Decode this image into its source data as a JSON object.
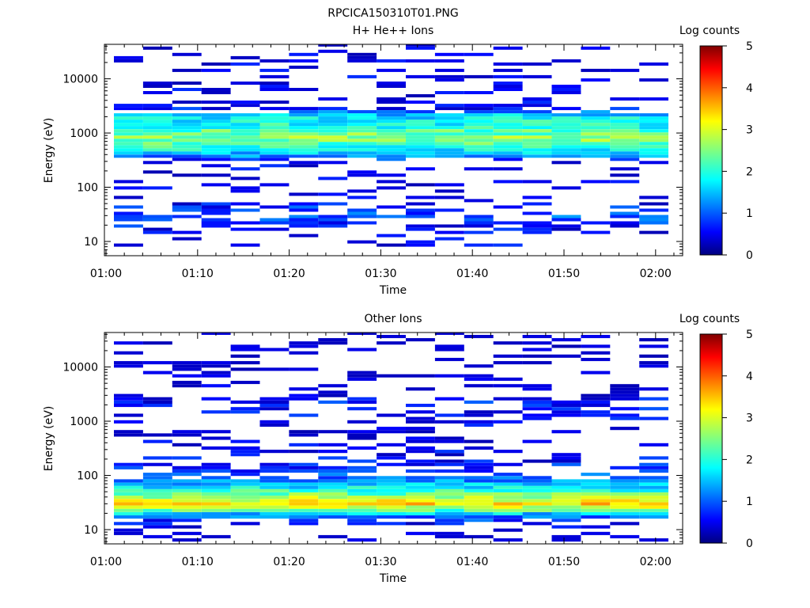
{
  "figure_title": "RPCICA150310T01.PNG",
  "chart_data": [
    {
      "type": "heatmap",
      "title": "H+ He++ Ions",
      "xlabel": "Time",
      "ylabel": "Energy (eV)",
      "x_ticks": [
        "01:00",
        "01:10",
        "01:20",
        "01:30",
        "01:40",
        "01:50",
        "02:00"
      ],
      "y_ticks": [
        "10",
        "100",
        "1000",
        "10000"
      ],
      "y_scale": "log",
      "colorbar": {
        "label": "Log counts",
        "ticks": [
          "0",
          "1",
          "2",
          "3",
          "4",
          "5"
        ],
        "range": [
          0,
          5
        ]
      },
      "profile": [
        [
          15,
          0.6
        ],
        [
          20,
          0.7
        ],
        [
          30,
          1.1
        ],
        [
          40,
          0.9
        ],
        [
          60,
          0.4
        ],
        [
          100,
          0.5
        ],
        [
          200,
          0.45
        ],
        [
          300,
          0.6
        ],
        [
          400,
          1.5
        ],
        [
          500,
          1.9
        ],
        [
          650,
          2.3
        ],
        [
          800,
          2.6
        ],
        [
          1000,
          2.4
        ],
        [
          1300,
          2.0
        ],
        [
          1700,
          1.9
        ],
        [
          2200,
          1.6
        ],
        [
          3000,
          0.5
        ],
        [
          5000,
          0.45
        ],
        [
          10000,
          0.45
        ],
        [
          40000,
          0.4
        ]
      ]
    },
    {
      "type": "heatmap",
      "title": "Other Ions",
      "xlabel": "Time",
      "ylabel": "Energy (eV)",
      "x_ticks": [
        "01:00",
        "01:10",
        "01:20",
        "01:30",
        "01:40",
        "01:50",
        "02:00"
      ],
      "y_ticks": [
        "10",
        "100",
        "1000",
        "10000"
      ],
      "y_scale": "log",
      "colorbar": {
        "label": "Log counts",
        "ticks": [
          "0",
          "1",
          "2",
          "3",
          "4",
          "5"
        ],
        "range": [
          0,
          5
        ]
      },
      "profile": [
        [
          8,
          0.2
        ],
        [
          12,
          0.5
        ],
        [
          16,
          1.0
        ],
        [
          20,
          1.7
        ],
        [
          25,
          2.8
        ],
        [
          30,
          3.3
        ],
        [
          35,
          3.0
        ],
        [
          45,
          2.4
        ],
        [
          60,
          1.8
        ],
        [
          80,
          1.3
        ],
        [
          120,
          0.9
        ],
        [
          200,
          0.6
        ],
        [
          500,
          0.35
        ],
        [
          1000,
          0.5
        ],
        [
          2000,
          0.8
        ],
        [
          4000,
          0.3
        ],
        [
          12000,
          0.2
        ]
      ]
    }
  ]
}
